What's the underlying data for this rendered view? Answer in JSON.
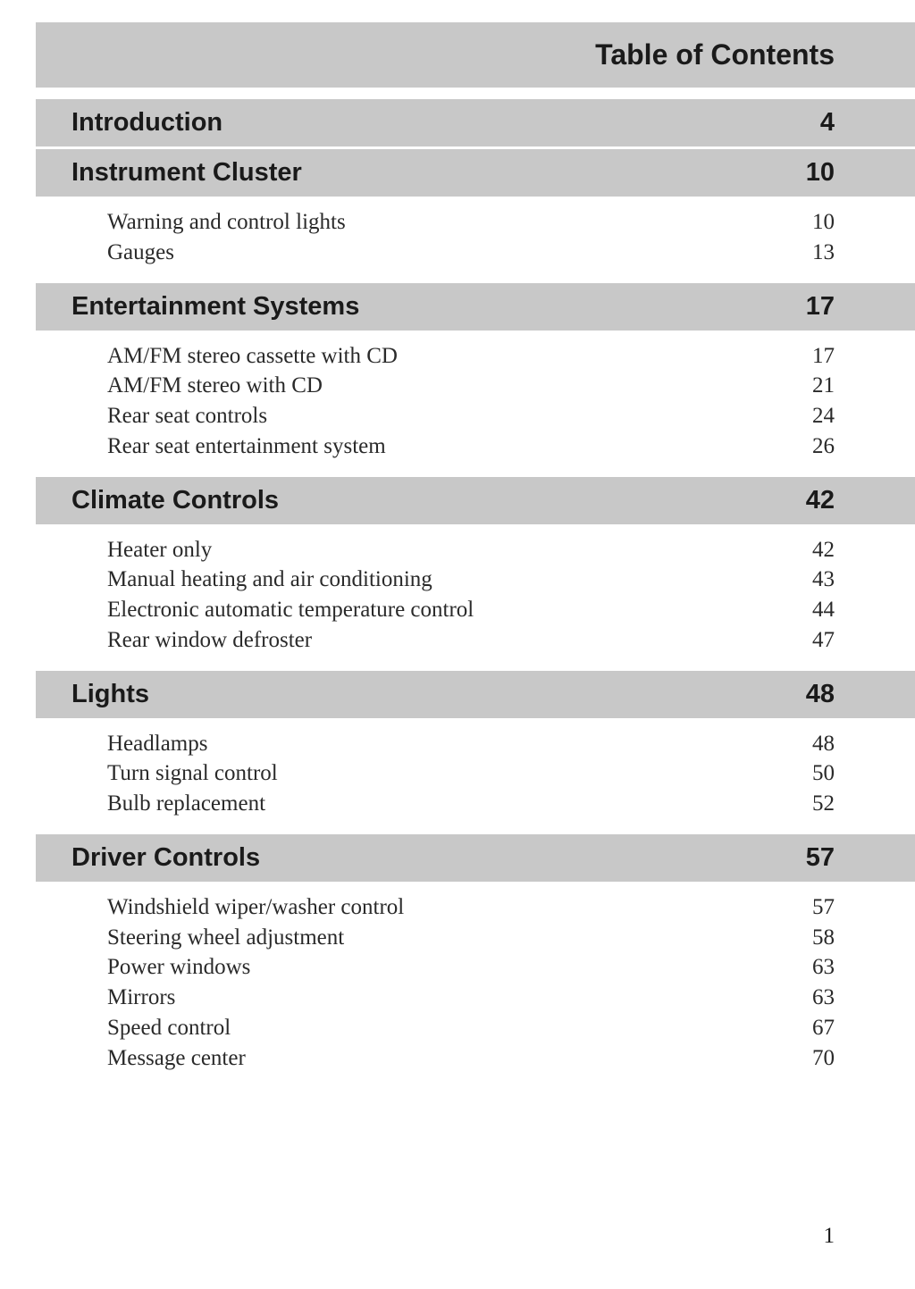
{
  "title": "Table of Contents",
  "page_number": "1",
  "colors": {
    "header_bg": "#c8c8c8",
    "page_bg": "#ffffff",
    "text_dark": "#1a1a1a",
    "text_body": "#2a2a2a"
  },
  "typography": {
    "heading_font": "Arial, Helvetica, sans-serif",
    "body_font": "Century Schoolbook, Georgia, serif",
    "title_size": 32,
    "section_size": 29,
    "body_size": 25
  },
  "sections": [
    {
      "title": "Introduction",
      "page": "4",
      "items": []
    },
    {
      "title": "Instrument Cluster",
      "page": "10",
      "items": [
        {
          "title": "Warning and control lights",
          "page": "10"
        },
        {
          "title": "Gauges",
          "page": "13"
        }
      ]
    },
    {
      "title": "Entertainment Systems",
      "page": "17",
      "items": [
        {
          "title": "AM/FM stereo cassette with CD",
          "page": "17"
        },
        {
          "title": "AM/FM stereo with CD",
          "page": "21"
        },
        {
          "title": "Rear seat controls",
          "page": "24"
        },
        {
          "title": "Rear seat entertainment system",
          "page": "26"
        }
      ]
    },
    {
      "title": "Climate Controls",
      "page": "42",
      "items": [
        {
          "title": "Heater only",
          "page": "42"
        },
        {
          "title": "Manual heating and air conditioning",
          "page": "43"
        },
        {
          "title": "Electronic automatic temperature control",
          "page": "44"
        },
        {
          "title": "Rear window defroster",
          "page": "47"
        }
      ]
    },
    {
      "title": "Lights",
      "page": "48",
      "items": [
        {
          "title": "Headlamps",
          "page": "48"
        },
        {
          "title": "Turn signal control",
          "page": "50"
        },
        {
          "title": "Bulb replacement",
          "page": "52"
        }
      ]
    },
    {
      "title": "Driver Controls",
      "page": "57",
      "items": [
        {
          "title": "Windshield wiper/washer control",
          "page": "57"
        },
        {
          "title": "Steering wheel adjustment",
          "page": "58"
        },
        {
          "title": "Power windows",
          "page": "63"
        },
        {
          "title": "Mirrors",
          "page": "63"
        },
        {
          "title": "Speed control",
          "page": "67"
        },
        {
          "title": "Message center",
          "page": "70"
        }
      ]
    }
  ]
}
